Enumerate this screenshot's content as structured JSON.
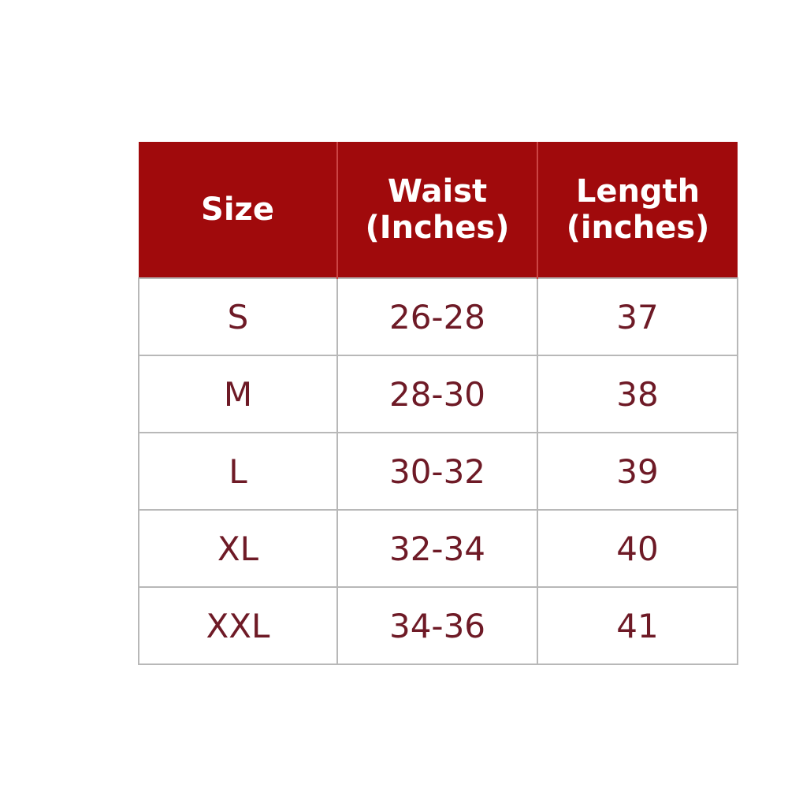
{
  "table": {
    "header_color": "#a00a0c",
    "text_color": "#6e1a26",
    "headers": [
      {
        "line1": "Size",
        "line2": ""
      },
      {
        "line1": "Waist",
        "line2": "(Inches)"
      },
      {
        "line1": "Length",
        "line2": "(inches)"
      }
    ],
    "rows": [
      [
        "S",
        "26-28",
        "37"
      ],
      [
        "M",
        "28-30",
        "38"
      ],
      [
        "L",
        "30-32",
        "39"
      ],
      [
        "XL",
        "32-34",
        "40"
      ],
      [
        "XXL",
        "34-36",
        "41"
      ]
    ]
  }
}
